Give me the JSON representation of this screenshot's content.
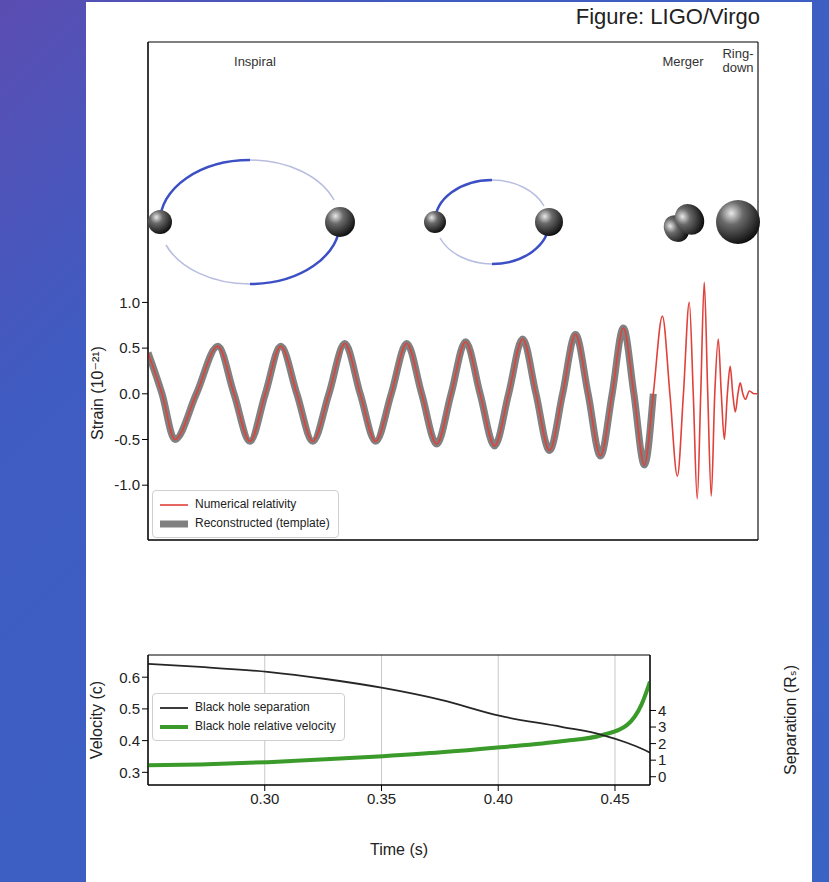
{
  "source": "Figure: LIGO/Virgo",
  "chart_data": [
    {
      "type": "line",
      "y_label": "Strain (10⁻²¹)",
      "annotations": [
        "Inspiral",
        "Merger",
        "Ring-down"
      ],
      "x": [
        0.25,
        0.256,
        0.2615,
        0.2707,
        0.2799,
        0.2868,
        0.2936,
        0.3002,
        0.3068,
        0.3137,
        0.3205,
        0.3274,
        0.3342,
        0.3408,
        0.3474,
        0.3541,
        0.3607,
        0.3671,
        0.3735,
        0.3797,
        0.3859,
        0.3921,
        0.3983,
        0.4043,
        0.4103,
        0.416,
        0.4218,
        0.4274,
        0.4329,
        0.4383,
        0.4436,
        0.4486,
        0.4534,
        0.4579,
        0.4624,
        0.4662,
        0.4701,
        0.4733,
        0.4765,
        0.4791,
        0.4816,
        0.4833,
        0.485,
        0.4865,
        0.488,
        0.4895,
        0.491,
        0.4925,
        0.494,
        0.4953,
        0.4966,
        0.4979,
        0.4991,
        0.5002,
        0.5013,
        0.5024,
        0.5034,
        0.5045,
        0.5056,
        0.5073,
        0.5094,
        0.5107
      ],
      "series": [
        {
          "name": "Numerical relativity",
          "color": "#e0413a",
          "values": [
            0.45,
            0,
            -0.5,
            0,
            0.52,
            0,
            -0.52,
            0,
            0.52,
            0,
            -0.52,
            0,
            0.55,
            0,
            -0.52,
            0,
            0.55,
            0,
            -0.55,
            0,
            0.57,
            0,
            -0.57,
            0,
            0.6,
            0,
            -0.62,
            0,
            0.65,
            0,
            -0.68,
            0,
            0.72,
            0,
            -0.78,
            0,
            0.85,
            0,
            -0.9,
            0,
            1.0,
            0,
            -1.15,
            0,
            1.22,
            0,
            -1.12,
            0,
            0.6,
            0,
            -0.5,
            0,
            0.3,
            0,
            -0.2,
            0,
            0.12,
            0,
            -0.06,
            0.03,
            0,
            0
          ]
        },
        {
          "name": "Reconstructed (template)",
          "color": "#808080",
          "values": [
            0.45,
            0,
            -0.5,
            0,
            0.52,
            0,
            -0.52,
            0,
            0.52,
            0,
            -0.52,
            0,
            0.55,
            0,
            -0.52,
            0,
            0.55,
            0,
            -0.55,
            0,
            0.57,
            0,
            -0.57,
            0,
            0.6,
            0,
            -0.62,
            0,
            0.65,
            0,
            -0.68,
            0,
            0.72,
            0,
            -0.78,
            0,
            null,
            null,
            null,
            null,
            null,
            null,
            null,
            null,
            null,
            null,
            null,
            null,
            null,
            null,
            null,
            null,
            null,
            null,
            null,
            null,
            null,
            null,
            null,
            null,
            null,
            null
          ]
        }
      ],
      "xlim": [
        0.25,
        0.511
      ],
      "xticks": [
        0.3,
        0.35,
        0.4,
        0.45
      ],
      "ylim": [
        -1.6,
        3.85
      ],
      "yticks": [
        {
          "value": -1,
          "label": "-1.0"
        },
        -0.5,
        {
          "value": 0,
          "label": "0.0"
        },
        0.5,
        {
          "value": 1,
          "label": "1.0"
        }
      ],
      "grid": true,
      "legend": "lower left",
      "tick_labels": "y"
    },
    {
      "type": "line",
      "x_label": "Time (s)",
      "y_label": "Velocity (c)",
      "y2_label": "Separation (Rₛ)",
      "x": [
        0.25,
        0.2724,
        0.3012,
        0.3261,
        0.3506,
        0.3755,
        0.4009,
        0.4271,
        0.4443,
        0.4551,
        0.4615,
        0.465
      ],
      "series": [
        {
          "name": "Black hole separation",
          "color": "#262626",
          "axis": "y2",
          "values": [
            6.81,
            6.63,
            6.33,
            5.9,
            5.36,
            4.64,
            3.67,
            3.01,
            2.53,
            2.05,
            1.69,
            1.45
          ]
        },
        {
          "name": "Black hole relative velocity",
          "color": "#3a9a2a",
          "values": [
            0.322,
            0.325,
            0.332,
            0.341,
            0.351,
            0.363,
            0.379,
            0.398,
            0.417,
            0.449,
            0.516,
            0.586
          ]
        }
      ],
      "xlim": [
        0.25,
        0.465
      ],
      "xticks": [
        {
          "value": 0.3,
          "label": "0.30"
        },
        {
          "value": 0.35,
          "label": "0.35"
        },
        {
          "value": 0.4,
          "label": "0.40"
        },
        {
          "value": 0.45,
          "label": "0.45"
        }
      ],
      "ylim": [
        0.26,
        0.67
      ],
      "yticks": [
        0.3,
        0.4,
        0.5,
        0.6
      ],
      "y2lim": [
        -0.5,
        7.35
      ],
      "y2ticks": [
        0,
        1,
        2,
        3,
        4
      ],
      "grid": true,
      "legend": "upper left"
    }
  ]
}
